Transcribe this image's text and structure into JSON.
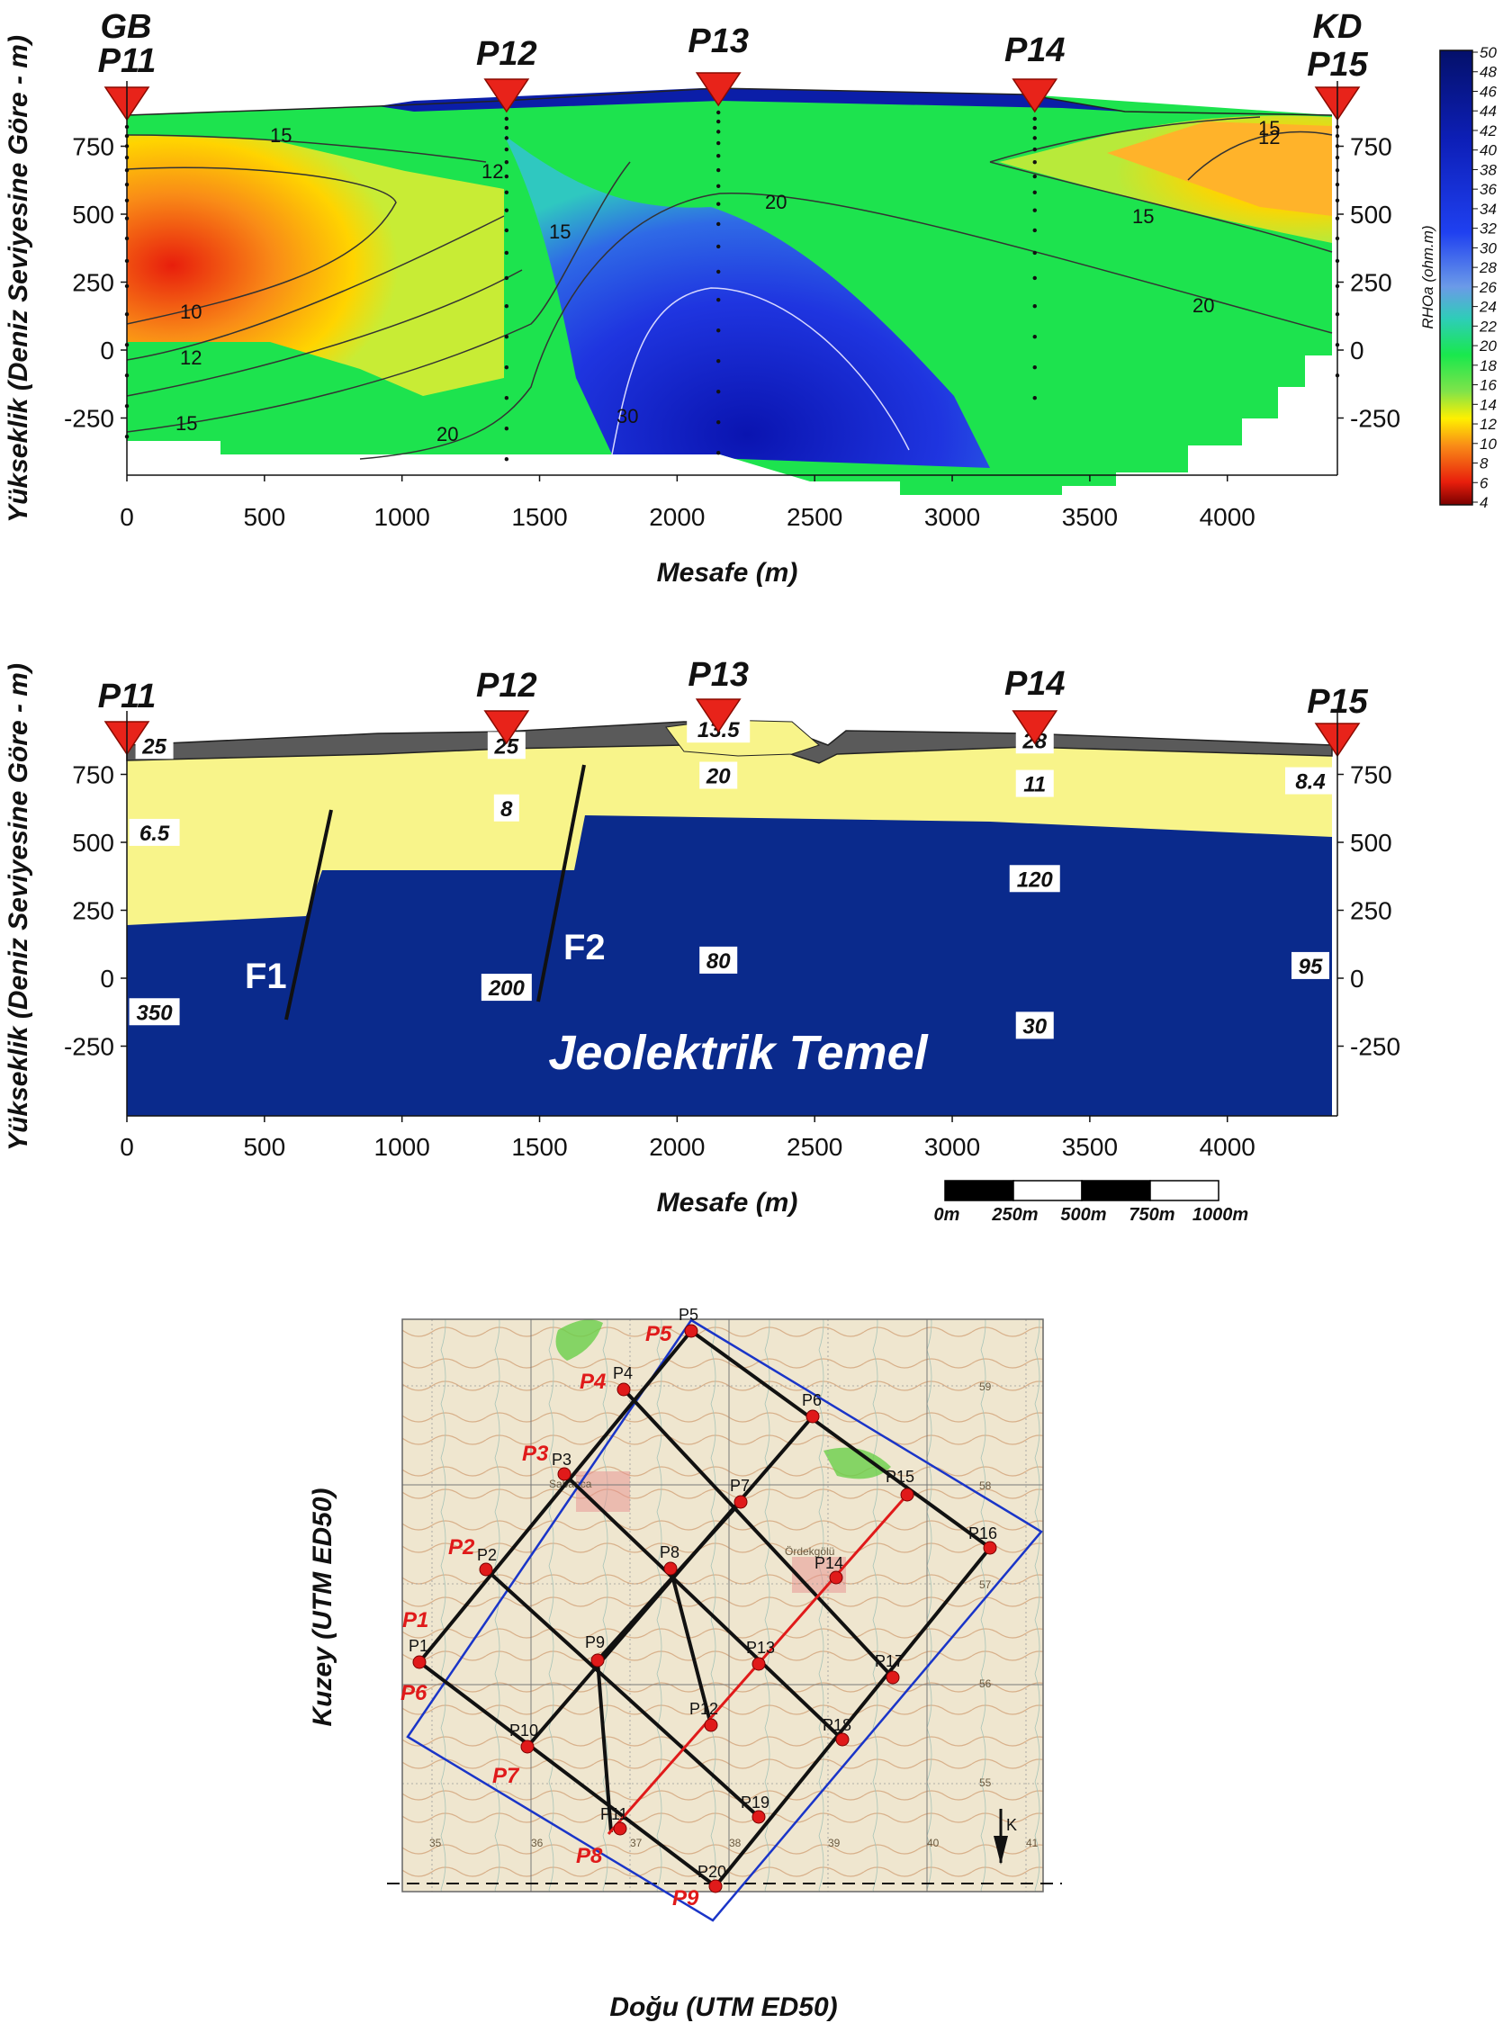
{
  "top_section": {
    "label_left_dir": "GB",
    "label_right_dir": "KD",
    "profiles": [
      "P11",
      "P12",
      "P13",
      "P14",
      "P15"
    ],
    "ylabel": "Yükseklik (Deniz Seviyesine Göre - m)",
    "xlabel": "Mesafe (m)",
    "colorbar_label": "RHOa (ohm.m)",
    "colorbar_ticks": [
      "50",
      "48",
      "46",
      "44",
      "42",
      "40",
      "38",
      "36",
      "34",
      "32",
      "30",
      "28",
      "26",
      "24",
      "22",
      "20",
      "18",
      "16",
      "14",
      "12",
      "10",
      "8",
      "6",
      "4"
    ],
    "contour_labels": [
      {
        "text": "15"
      },
      {
        "text": "12"
      },
      {
        "text": "10"
      },
      {
        "text": "12"
      },
      {
        "text": "15"
      },
      {
        "text": "15"
      },
      {
        "text": "20"
      },
      {
        "text": "30"
      },
      {
        "text": "20"
      },
      {
        "text": "15"
      },
      {
        "text": "20"
      },
      {
        "text": "15"
      },
      {
        "text": "12"
      }
    ]
  },
  "geo_section": {
    "profiles": [
      "P11",
      "P12",
      "P13",
      "P14",
      "P15"
    ],
    "ylabel": "Yükseklik (Deniz Seviyesine Göre - m)",
    "xlabel": "Mesafe (m)",
    "resistivity_values": [
      "25",
      "6.5",
      "350",
      "25",
      "8",
      "200",
      "13.5",
      "20",
      "80",
      "28",
      "11",
      "120",
      "30",
      "8.4",
      "95"
    ],
    "faults": [
      "F1",
      "F2"
    ],
    "basement_label": "Jeolektrik Temel",
    "scale_bar": [
      "0m",
      "250m",
      "500m",
      "750m",
      "1000m"
    ]
  },
  "chart_data": [
    {
      "type": "heatmap",
      "title": "",
      "xlabel": "Mesafe (m)",
      "ylabel": "Yükseklik (Deniz Seviyesine Göre - m)",
      "xlim": [
        0,
        4400
      ],
      "ylim": [
        -480,
        950
      ],
      "x_ticks": [
        0,
        500,
        1000,
        1500,
        2000,
        2500,
        3000,
        3500,
        4000
      ],
      "y_ticks": [
        750,
        500,
        250,
        0,
        -250
      ],
      "profile_stations": [
        {
          "name": "P11",
          "x": 0
        },
        {
          "name": "P12",
          "x": 1380
        },
        {
          "name": "P13",
          "x": 2150
        },
        {
          "name": "P14",
          "x": 3300
        },
        {
          "name": "P15",
          "x": 4400
        }
      ],
      "colorbar": {
        "label": "RHOa (ohm.m)",
        "min": 4,
        "max": 50
      },
      "contour_levels": [
        10,
        12,
        15,
        20,
        30
      ]
    },
    {
      "type": "area",
      "title": "",
      "xlabel": "Mesafe (m)",
      "ylabel": "Yükseklik (Deniz Seviyesine Göre - m)",
      "xlim": [
        0,
        4400
      ],
      "ylim": [
        -480,
        950
      ],
      "x_ticks": [
        0,
        500,
        1000,
        1500,
        2000,
        2500,
        3000,
        3500,
        4000
      ],
      "y_ticks": [
        750,
        500,
        250,
        0,
        -250
      ],
      "layers": [
        {
          "name": "surface layer",
          "color": "#5a5a5a"
        },
        {
          "name": "conductive layer",
          "color": "#f8f48a"
        },
        {
          "name": "Jeolektrik Temel",
          "color": "#0a2a8c"
        }
      ],
      "basement_top": [
        {
          "x": 0,
          "y": 210
        },
        {
          "x": 650,
          "y": 230
        },
        {
          "x": 700,
          "y": 410
        },
        {
          "x": 1620,
          "y": 410
        },
        {
          "x": 1650,
          "y": 610
        },
        {
          "x": 4400,
          "y": 545
        }
      ],
      "resistivity_labels": [
        {
          "x": 100,
          "y": 850,
          "value": "25"
        },
        {
          "x": 100,
          "y": 530,
          "value": "6.5"
        },
        {
          "x": 100,
          "y": -130,
          "value": "350"
        },
        {
          "x": 1380,
          "y": 850,
          "value": "25"
        },
        {
          "x": 1380,
          "y": 620,
          "value": "8"
        },
        {
          "x": 1380,
          "y": -40,
          "value": "200"
        },
        {
          "x": 2150,
          "y": 910,
          "value": "13.5"
        },
        {
          "x": 2150,
          "y": 740,
          "value": "20"
        },
        {
          "x": 2150,
          "y": 60,
          "value": "80"
        },
        {
          "x": 3300,
          "y": 870,
          "value": "28"
        },
        {
          "x": 3300,
          "y": 710,
          "value": "11"
        },
        {
          "x": 3300,
          "y": 360,
          "value": "120"
        },
        {
          "x": 3300,
          "y": -180,
          "value": "30"
        },
        {
          "x": 4400,
          "y": 720,
          "value": "8.4"
        },
        {
          "x": 4400,
          "y": 40,
          "value": "95"
        }
      ]
    }
  ],
  "map": {
    "ylabel": "Kuzey (UTM ED50)",
    "xlabel": "Doğu (UTM ED50)",
    "red_labels": [
      "P1",
      "P2",
      "P3",
      "P4",
      "P5",
      "P6",
      "P7",
      "P8",
      "P9"
    ],
    "black_labels": [
      "P1",
      "P2",
      "P3",
      "P4",
      "P5",
      "P6",
      "P7",
      "P8",
      "P9",
      "P10",
      "P11",
      "P12",
      "P13",
      "P14",
      "P15",
      "P16",
      "P17",
      "P18",
      "P19",
      "P20"
    ],
    "place_names": [
      "Sabanca",
      "Ördekgölü"
    ],
    "grid_x_labels": [
      "35",
      "36",
      "37",
      "38",
      "39",
      "40",
      "41"
    ],
    "grid_y_labels": [
      "59",
      "58",
      "57",
      "56",
      "55"
    ],
    "north_label": "K",
    "colors": {
      "profile_line": "#111111",
      "highlight_line": "#e01a1a",
      "boundary": "#1a35c8",
      "station": "#e01a1a"
    }
  }
}
